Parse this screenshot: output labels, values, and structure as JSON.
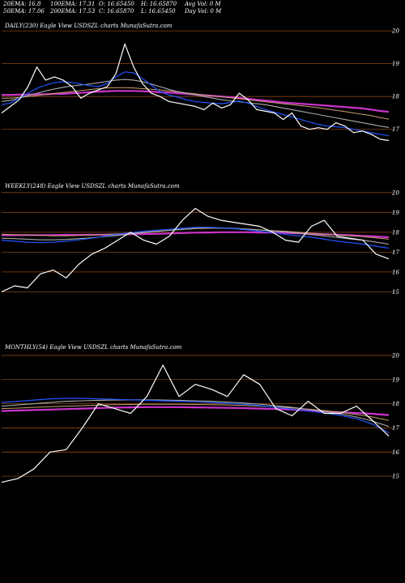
{
  "header": {
    "ema20": "20EMA: 16.8",
    "ema50": "50EMA: 17.06",
    "ema100": "100EMA: 17.31",
    "ema200": "200EMA: 17.53",
    "open": "O: 16.65450",
    "close": "C: 16.65870",
    "high": "H: 16.65870",
    "low": "L: 16.65450",
    "avg_vol": "Avg Vol: 0  M",
    "day_vol": "Day Vol: 0  M"
  },
  "colors": {
    "background": "#000000",
    "price": "#ffffff",
    "ema20": "#2255ff",
    "ema50": "#aaaaaa",
    "ema100": "#c8a070",
    "ema200": "#cc33cc",
    "gridline": "#8b4513"
  },
  "chart_data": [
    {
      "type": "line",
      "title": "DAILY(230) Eagle  View  USDSZL  charts MunafaSutra.com",
      "yticks": [
        17,
        18,
        19,
        20
      ],
      "ylim": [
        16.5,
        20.2
      ],
      "series": [
        {
          "key": "ema200",
          "values": [
            18.05,
            18.05,
            18.06,
            18.06,
            18.07,
            18.07,
            18.08,
            18.08,
            18.1,
            18.11,
            18.13,
            18.15,
            18.16,
            18.17,
            18.17,
            18.17,
            18.16,
            18.15,
            18.13,
            18.12,
            18.1,
            18.08,
            18.06,
            18.04,
            18.02,
            18.0,
            17.98,
            17.96,
            17.93,
            17.9,
            17.88,
            17.85,
            17.82,
            17.8,
            17.78,
            17.76,
            17.74,
            17.72,
            17.7,
            17.68,
            17.66,
            17.64,
            17.6,
            17.56,
            17.53
          ]
        },
        {
          "key": "ema100",
          "values": [
            17.95,
            17.95,
            17.97,
            18.0,
            18.03,
            18.06,
            18.09,
            18.12,
            18.15,
            18.18,
            18.21,
            18.24,
            18.26,
            18.27,
            18.27,
            18.26,
            18.24,
            18.22,
            18.2,
            18.17,
            18.14,
            18.11,
            18.08,
            18.05,
            18.02,
            17.99,
            17.96,
            17.93,
            17.9,
            17.87,
            17.84,
            17.81,
            17.78,
            17.75,
            17.72,
            17.69,
            17.66,
            17.62,
            17.58,
            17.54,
            17.5,
            17.46,
            17.42,
            17.36,
            17.31
          ]
        },
        {
          "key": "ema50",
          "values": [
            17.85,
            17.88,
            17.95,
            18.03,
            18.1,
            18.17,
            18.23,
            18.28,
            18.32,
            18.35,
            18.38,
            18.42,
            18.46,
            18.5,
            18.52,
            18.5,
            18.45,
            18.38,
            18.3,
            18.22,
            18.15,
            18.1,
            18.05,
            18.0,
            17.95,
            17.9,
            17.87,
            17.84,
            17.81,
            17.78,
            17.75,
            17.7,
            17.65,
            17.6,
            17.55,
            17.5,
            17.45,
            17.4,
            17.35,
            17.3,
            17.25,
            17.2,
            17.15,
            17.1,
            17.06
          ]
        },
        {
          "key": "ema20",
          "values": [
            17.75,
            17.8,
            17.95,
            18.1,
            18.25,
            18.35,
            18.42,
            18.45,
            18.43,
            18.38,
            18.33,
            18.3,
            18.4,
            18.6,
            18.75,
            18.72,
            18.55,
            18.35,
            18.15,
            18.05,
            17.98,
            17.9,
            17.85,
            17.82,
            17.8,
            17.78,
            17.82,
            17.86,
            17.8,
            17.7,
            17.6,
            17.52,
            17.45,
            17.38,
            17.3,
            17.22,
            17.15,
            17.1,
            17.08,
            17.05,
            17.0,
            16.95,
            16.9,
            16.85,
            16.8
          ]
        },
        {
          "key": "price",
          "values": [
            17.5,
            17.7,
            17.9,
            18.3,
            18.9,
            18.5,
            18.6,
            18.5,
            18.3,
            17.95,
            18.1,
            18.2,
            18.3,
            18.7,
            19.6,
            18.9,
            18.4,
            18.1,
            18.0,
            17.85,
            17.8,
            17.75,
            17.7,
            17.6,
            17.8,
            17.65,
            17.75,
            18.1,
            17.9,
            17.6,
            17.55,
            17.5,
            17.3,
            17.5,
            17.1,
            17.0,
            17.05,
            17.0,
            17.2,
            17.1,
            16.9,
            16.95,
            16.85,
            16.7,
            16.66
          ]
        }
      ]
    },
    {
      "type": "line",
      "title": "WEEKLY(248) Eagle  View  USDSZL  charts MunafaSutra.com",
      "yticks": [
        15,
        16,
        17,
        18,
        19,
        20
      ],
      "ylim": [
        14.2,
        20.4
      ],
      "series": [
        {
          "key": "ema200",
          "values": [
            17.85,
            17.85,
            17.86,
            17.86,
            17.86,
            17.87,
            17.87,
            17.88,
            17.88,
            17.89,
            17.9,
            17.91,
            17.92,
            17.94,
            17.96,
            17.98,
            17.99,
            18.0,
            18.0,
            18.0,
            17.99,
            17.98,
            17.97,
            17.95,
            17.93,
            17.9,
            17.88,
            17.85,
            17.82,
            17.79,
            17.75
          ]
        },
        {
          "key": "ema100",
          "values": [
            17.9,
            17.88,
            17.86,
            17.84,
            17.82,
            17.82,
            17.84,
            17.86,
            17.88,
            17.92,
            17.96,
            18.0,
            18.05,
            18.1,
            18.14,
            18.18,
            18.2,
            18.2,
            18.18,
            18.16,
            18.12,
            18.08,
            18.05,
            18.0,
            17.95,
            17.9,
            17.86,
            17.82,
            17.78,
            17.72,
            17.65
          ]
        },
        {
          "key": "ema50",
          "values": [
            17.7,
            17.68,
            17.65,
            17.62,
            17.62,
            17.64,
            17.68,
            17.72,
            17.78,
            17.84,
            17.92,
            17.98,
            18.04,
            18.1,
            18.15,
            18.2,
            18.22,
            18.22,
            18.2,
            18.16,
            18.12,
            18.06,
            18.02,
            17.95,
            17.88,
            17.82,
            17.74,
            17.66,
            17.6,
            17.5,
            17.4
          ]
        },
        {
          "key": "ema20",
          "values": [
            17.6,
            17.55,
            17.5,
            17.48,
            17.5,
            17.55,
            17.62,
            17.7,
            17.8,
            17.9,
            17.98,
            18.05,
            18.1,
            18.15,
            18.2,
            18.25,
            18.25,
            18.22,
            18.18,
            18.12,
            18.05,
            17.98,
            17.9,
            17.82,
            17.75,
            17.65,
            17.55,
            17.48,
            17.4,
            17.3,
            17.2
          ]
        },
        {
          "key": "price",
          "values": [
            15.0,
            15.3,
            15.2,
            15.9,
            16.1,
            15.7,
            16.4,
            16.9,
            17.2,
            17.6,
            18.0,
            17.6,
            17.4,
            17.8,
            18.6,
            19.2,
            18.8,
            18.6,
            18.5,
            18.4,
            18.3,
            18.0,
            17.6,
            17.5,
            18.3,
            18.6,
            17.8,
            17.7,
            17.6,
            16.9,
            16.66
          ]
        }
      ]
    },
    {
      "type": "line",
      "title": "MONTHLY(54) Eagle  View  USDSZL  charts MunafaSutra.com",
      "yticks": [
        15,
        16,
        17,
        18,
        19,
        20
      ],
      "ylim": [
        14.2,
        20.4
      ],
      "series": [
        {
          "key": "ema200",
          "values": [
            17.7,
            17.72,
            17.74,
            17.76,
            17.78,
            17.8,
            17.82,
            17.84,
            17.85,
            17.86,
            17.86,
            17.86,
            17.85,
            17.84,
            17.83,
            17.82,
            17.8,
            17.78,
            17.76,
            17.72,
            17.68,
            17.65,
            17.62,
            17.58,
            17.53
          ]
        },
        {
          "key": "ema100",
          "values": [
            17.8,
            17.82,
            17.85,
            17.88,
            17.9,
            17.92,
            17.94,
            17.96,
            17.97,
            17.98,
            17.98,
            17.98,
            17.97,
            17.96,
            17.95,
            17.93,
            17.9,
            17.87,
            17.83,
            17.78,
            17.72,
            17.65,
            17.55,
            17.45,
            17.31
          ]
        },
        {
          "key": "ema50",
          "values": [
            17.9,
            17.95,
            18.0,
            18.05,
            18.1,
            18.12,
            18.14,
            18.15,
            18.16,
            18.16,
            18.15,
            18.14,
            18.12,
            18.1,
            18.07,
            18.03,
            17.98,
            17.92,
            17.85,
            17.77,
            17.68,
            17.58,
            17.45,
            17.28,
            17.06
          ]
        },
        {
          "key": "ema20",
          "values": [
            18.05,
            18.1,
            18.15,
            18.2,
            18.22,
            18.22,
            18.2,
            18.18,
            18.16,
            18.14,
            18.12,
            18.1,
            18.08,
            18.05,
            18.02,
            17.98,
            17.92,
            17.85,
            17.78,
            17.7,
            17.62,
            17.52,
            17.38,
            17.15,
            16.8
          ]
        },
        {
          "key": "price",
          "values": [
            14.75,
            14.9,
            15.3,
            16.0,
            16.1,
            17.0,
            18.0,
            17.8,
            17.6,
            18.3,
            19.6,
            18.3,
            18.8,
            18.6,
            18.3,
            19.2,
            18.8,
            17.8,
            17.5,
            18.1,
            17.6,
            17.6,
            17.9,
            17.3,
            16.66
          ]
        }
      ]
    }
  ]
}
